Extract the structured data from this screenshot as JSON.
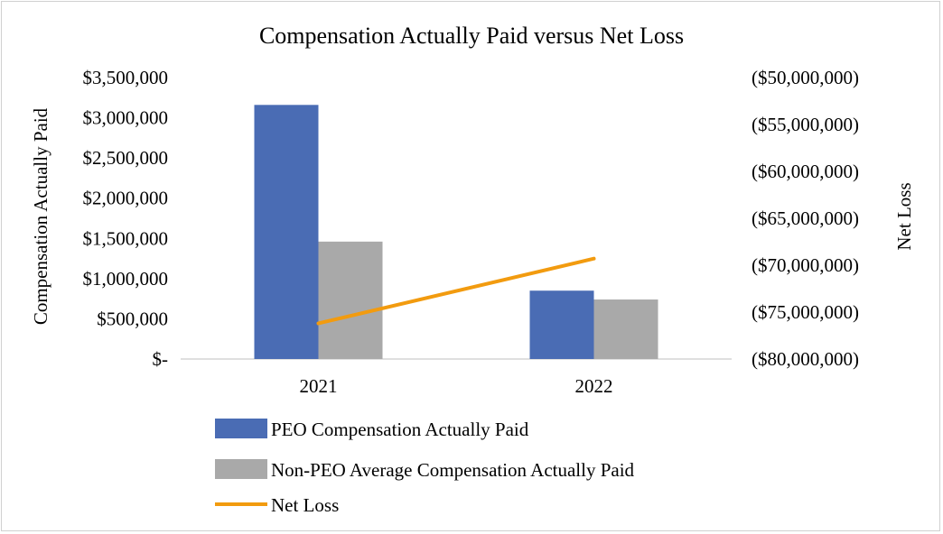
{
  "chart_data": {
    "type": "bar",
    "title": "Compensation Actually Paid versus Net Loss",
    "categories": [
      "2021",
      "2022"
    ],
    "y_left": {
      "label": "Compensation Actually Paid",
      "min": 0,
      "max": 3500000,
      "ticks": [
        "$3,500,000",
        "$3,000,000",
        "$2,500,000",
        "$2,000,000",
        "$1,500,000",
        "$1,000,000",
        "$500,000",
        "$-"
      ]
    },
    "y_right": {
      "label": "Net Loss",
      "min": -80000000,
      "max": -50000000,
      "ticks": [
        "($50,000,000)",
        "($55,000,000)",
        "($60,000,000)",
        "($65,000,000)",
        "($70,000,000)",
        "($75,000,000)",
        "($80,000,000)"
      ]
    },
    "series": [
      {
        "name": "PEO Compensation Actually Paid",
        "type": "bar",
        "axis": "left",
        "color": "#4a6cb4",
        "values": [
          3160000,
          850000
        ]
      },
      {
        "name": "Non-PEO Average Compensation Actually Paid",
        "type": "bar",
        "axis": "left",
        "color": "#a9a9a9",
        "values": [
          1460000,
          740000
        ]
      },
      {
        "name": "Net Loss",
        "type": "line",
        "axis": "right",
        "color": "#f29b0f",
        "values": [
          -76200000,
          -69300000
        ]
      }
    ],
    "legend_position": "bottom-left",
    "grid": false
  }
}
